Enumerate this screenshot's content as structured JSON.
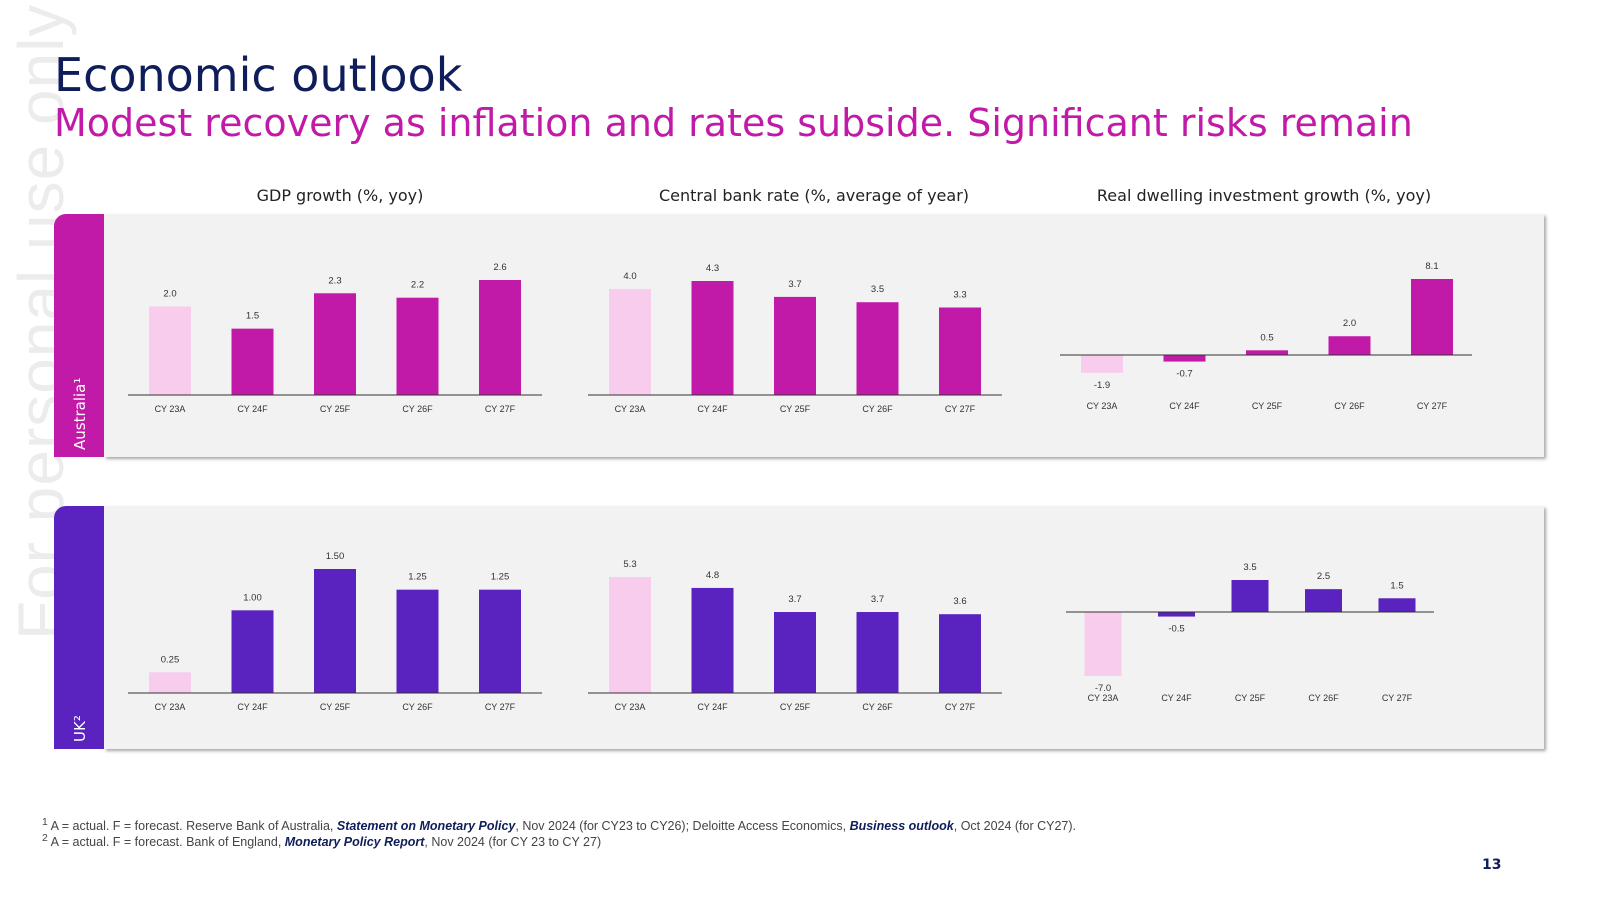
{
  "watermark": "For personal use only",
  "title": "Economic outlook",
  "subtitle": "Modest recovery as inflation and rates subside. Significant risks remain",
  "column_titles": [
    "GDP growth (%, yoy)",
    "Central bank rate (%, average of year)",
    "Real dwelling investment growth (%, yoy)"
  ],
  "rows": [
    {
      "label": "Australia¹",
      "color": "#c21aa8"
    },
    {
      "label": "UK²",
      "color": "#5a22be"
    }
  ],
  "colors": {
    "actual": "#f8ccec",
    "australia": "#c21aa8",
    "uk": "#5a22be",
    "title": "#0f1e5a"
  },
  "chart_data": [
    {
      "id": "aus-gdp",
      "type": "bar",
      "title": "GDP growth (%, yoy)",
      "row": "Australia",
      "categories": [
        "CY 23A",
        "CY 24F",
        "CY 25F",
        "CY 26F",
        "CY 27F"
      ],
      "values": [
        2.0,
        1.5,
        2.3,
        2.2,
        2.6
      ],
      "labels": [
        "2.0",
        "1.5",
        "2.3",
        "2.2",
        "2.6"
      ],
      "ylim": [
        0,
        2.6
      ]
    },
    {
      "id": "aus-rate",
      "type": "bar",
      "title": "Central bank rate (%, average of year)",
      "row": "Australia",
      "categories": [
        "CY 23A",
        "CY 24F",
        "CY 25F",
        "CY 26F",
        "CY 27F"
      ],
      "values": [
        4.0,
        4.3,
        3.7,
        3.5,
        3.3
      ],
      "labels": [
        "4.0",
        "4.3",
        "3.7",
        "3.5",
        "3.3"
      ],
      "ylim": [
        0,
        4.3
      ]
    },
    {
      "id": "aus-dwelling",
      "type": "bar",
      "title": "Real dwelling investment growth (%, yoy)",
      "row": "Australia",
      "categories": [
        "CY 23A",
        "CY 24F",
        "CY 25F",
        "CY 26F",
        "CY 27F"
      ],
      "values": [
        -1.9,
        -0.7,
        0.5,
        2.0,
        8.1
      ],
      "labels": [
        "-1.9",
        "-0.7",
        "0.5",
        "2.0",
        "8.1"
      ],
      "ylim": [
        -1.9,
        8.1
      ]
    },
    {
      "id": "uk-gdp",
      "type": "bar",
      "title": "GDP growth (%, yoy)",
      "row": "UK",
      "categories": [
        "CY 23A",
        "CY 24F",
        "CY 25F",
        "CY 26F",
        "CY 27F"
      ],
      "values": [
        0.25,
        1.0,
        1.5,
        1.25,
        1.25
      ],
      "labels": [
        "0.25",
        "1.00",
        "1.50",
        "1.25",
        "1.25"
      ],
      "ylim": [
        0,
        1.5
      ]
    },
    {
      "id": "uk-rate",
      "type": "bar",
      "title": "Central bank rate (%, average of year)",
      "row": "UK",
      "categories": [
        "CY 23A",
        "CY 24F",
        "CY 25F",
        "CY 26F",
        "CY 27F"
      ],
      "values": [
        5.3,
        4.8,
        3.7,
        3.7,
        3.6
      ],
      "labels": [
        "5.3",
        "4.8",
        "3.7",
        "3.7",
        "3.6"
      ],
      "ylim": [
        0,
        5.3
      ]
    },
    {
      "id": "uk-dwelling",
      "type": "bar",
      "title": "Real dwelling investment growth (%, yoy)",
      "row": "UK",
      "categories": [
        "CY 23A",
        "CY 24F",
        "CY 25F",
        "CY 26F",
        "CY 27F"
      ],
      "values": [
        -7.0,
        -0.5,
        3.5,
        2.5,
        1.5
      ],
      "labels": [
        "-7.0",
        "-0.5",
        "3.5",
        "2.5",
        "1.5"
      ],
      "ylim": [
        -7.0,
        3.5
      ]
    }
  ],
  "footnotes": {
    "f1": {
      "sup": "1",
      "p1": "A = actual. F = forecast. Reserve Bank of Australia, ",
      "i1": "Statement on Monetary Policy",
      "p2": ", Nov 2024 (for CY23 to CY26); Deloitte Access Economics, ",
      "i2": "Business outlook",
      "p3": ", Oct 2024 (for CY27)."
    },
    "f2": {
      "sup": "2",
      "p1": "A = actual. F = forecast. Bank of England, ",
      "i1": "Monetary Policy Report",
      "p2": ", Nov 2024 (for CY 23 to CY 27)"
    }
  },
  "page_number": "13"
}
